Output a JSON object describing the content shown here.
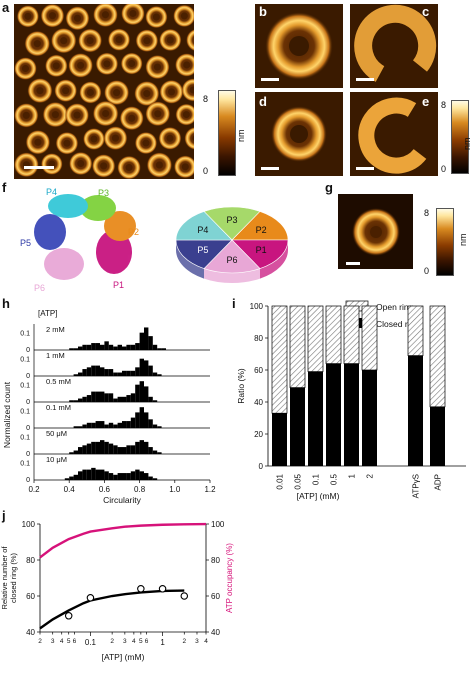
{
  "panels": {
    "a": "a",
    "b": "b",
    "c": "c",
    "d": "d",
    "e": "e",
    "f": "f",
    "g": "g",
    "h": "h",
    "i": "i",
    "j": "j"
  },
  "colorbar": {
    "max": "8",
    "min": "0",
    "unit": "nm"
  },
  "colors": {
    "afm_dark": "#3a1a00",
    "afm_bright": "#ffcc55",
    "magenta": "#d6127a",
    "black": "#000000"
  },
  "f": {
    "structure_labels": [
      "P1",
      "P2",
      "P3",
      "P4",
      "P5",
      "P6"
    ],
    "pie": [
      {
        "label": "P1",
        "color": "#c8157f",
        "value": 1
      },
      {
        "label": "P2",
        "color": "#e88a1b",
        "value": 1
      },
      {
        "label": "P3",
        "color": "#a6d96a",
        "value": 1
      },
      {
        "label": "P4",
        "color": "#7fd3d3",
        "value": 1
      },
      {
        "label": "P5",
        "color": "#3a3f8f",
        "value": 1
      },
      {
        "label": "P6",
        "color": "#e8a7d6",
        "value": 1
      }
    ]
  },
  "h": {
    "legend_title": "[ATP]",
    "rows": [
      "2 mM",
      "1 mM",
      "0.5 mM",
      "0.1 mM",
      "50 μM",
      "10 μM"
    ],
    "ytick_top": "0.1",
    "ytick_bottom": "0",
    "ylabel": "Normalized count",
    "xlabel": "Circularity",
    "xticks": [
      "0.2",
      "0.4",
      "0.6",
      "0.8",
      "1.0",
      "1.2"
    ]
  },
  "i": {
    "legend": [
      "Open ring",
      "Closed ring"
    ],
    "ylabel": "Ratio (%)",
    "xlabel": "[ATP] (mM)",
    "yticks": [
      "0",
      "20",
      "40",
      "60",
      "80",
      "100"
    ]
  },
  "j": {
    "ylabel_left": "Relative number of closed ring (%)",
    "ylabel_right": "ATP occupancy (%)",
    "xlabel": "[ATP] (mM)",
    "yticks": [
      "40",
      "60",
      "80",
      "100"
    ],
    "xtick_labels": [
      "2",
      "3",
      "4",
      "5",
      "6",
      "0.1",
      "2",
      "3",
      "4",
      "5",
      "6",
      "1",
      "2",
      "3",
      "4"
    ]
  },
  "chart_data": [
    {
      "type": "bar",
      "panel": "h",
      "x_range": [
        0.2,
        1.2
      ],
      "y_range": [
        0,
        0.15
      ],
      "bin_width": 0.025,
      "series": [
        {
          "name": "2 mM",
          "values": [
            0,
            0,
            0,
            0,
            0,
            0,
            0,
            0,
            0.01,
            0.01,
            0.02,
            0.03,
            0.03,
            0.04,
            0.04,
            0.03,
            0.05,
            0.03,
            0.02,
            0.03,
            0.02,
            0.03,
            0.03,
            0.04,
            0.1,
            0.13,
            0.08,
            0.03,
            0.01,
            0.01,
            0,
            0,
            0,
            0,
            0,
            0,
            0,
            0,
            0,
            0
          ]
        },
        {
          "name": "1 mM",
          "values": [
            0,
            0,
            0,
            0,
            0,
            0,
            0,
            0,
            0,
            0.01,
            0.02,
            0.04,
            0.05,
            0.06,
            0.06,
            0.05,
            0.04,
            0.04,
            0.02,
            0.02,
            0.03,
            0.03,
            0.03,
            0.05,
            0.1,
            0.09,
            0.06,
            0.02,
            0.01,
            0,
            0,
            0,
            0,
            0,
            0,
            0,
            0,
            0,
            0,
            0
          ]
        },
        {
          "name": "0.5 mM",
          "values": [
            0,
            0,
            0,
            0,
            0,
            0,
            0,
            0,
            0.01,
            0.01,
            0.02,
            0.03,
            0.04,
            0.06,
            0.06,
            0.06,
            0.05,
            0.05,
            0.02,
            0.03,
            0.03,
            0.04,
            0.05,
            0.1,
            0.12,
            0.09,
            0.03,
            0.01,
            0,
            0,
            0,
            0,
            0,
            0,
            0,
            0,
            0,
            0,
            0,
            0
          ]
        },
        {
          "name": "0.1 mM",
          "values": [
            0,
            0,
            0,
            0,
            0,
            0,
            0,
            0,
            0,
            0.01,
            0.01,
            0.02,
            0.03,
            0.03,
            0.04,
            0.04,
            0.02,
            0.03,
            0.02,
            0.03,
            0.04,
            0.04,
            0.06,
            0.09,
            0.12,
            0.09,
            0.05,
            0.02,
            0.01,
            0,
            0,
            0,
            0,
            0,
            0,
            0,
            0,
            0,
            0,
            0
          ]
        },
        {
          "name": "50 μM",
          "values": [
            0,
            0,
            0,
            0,
            0,
            0,
            0,
            0,
            0.01,
            0.02,
            0.04,
            0.05,
            0.06,
            0.07,
            0.07,
            0.08,
            0.07,
            0.06,
            0.05,
            0.04,
            0.04,
            0.05,
            0.05,
            0.07,
            0.08,
            0.07,
            0.04,
            0.02,
            0.01,
            0,
            0,
            0,
            0,
            0,
            0,
            0,
            0,
            0,
            0,
            0
          ]
        },
        {
          "name": "10 μM",
          "values": [
            0,
            0,
            0,
            0,
            0,
            0,
            0,
            0.01,
            0.02,
            0.03,
            0.05,
            0.06,
            0.06,
            0.07,
            0.06,
            0.06,
            0.05,
            0.04,
            0.03,
            0.04,
            0.04,
            0.04,
            0.05,
            0.06,
            0.05,
            0.04,
            0.02,
            0.01,
            0,
            0,
            0,
            0,
            0,
            0,
            0,
            0,
            0,
            0,
            0,
            0
          ]
        }
      ]
    },
    {
      "type": "bar",
      "panel": "i",
      "categories": [
        "0.01",
        "0.05",
        "0.1",
        "0.5",
        "1",
        "2",
        "",
        "ATPγS",
        "ADP"
      ],
      "ylim": [
        0,
        100
      ],
      "series": [
        {
          "name": "Closed ring",
          "values": [
            33,
            49,
            59,
            64,
            64,
            60,
            null,
            69,
            37
          ]
        },
        {
          "name": "Open ring",
          "values": [
            67,
            51,
            41,
            36,
            36,
            40,
            null,
            31,
            63
          ]
        }
      ]
    },
    {
      "type": "line",
      "panel": "j",
      "xscale": "log",
      "xlim": [
        0.02,
        4
      ],
      "ylim_left": [
        40,
        100
      ],
      "ylim_right": [
        0,
        100
      ],
      "points": {
        "x": [
          0.05,
          0.1,
          0.5,
          1,
          2
        ],
        "y": [
          49,
          59,
          64,
          64,
          60
        ]
      },
      "fit_closed": {
        "x": [
          0.02,
          0.03,
          0.05,
          0.08,
          0.1,
          0.2,
          0.3,
          0.5,
          1,
          2
        ],
        "y": [
          42,
          47,
          52,
          56,
          57.5,
          60,
          61,
          62,
          62.8,
          63
        ]
      },
      "fit_occupancy": {
        "x": [
          0.02,
          0.03,
          0.05,
          0.08,
          0.1,
          0.2,
          0.3,
          0.5,
          1,
          2,
          4
        ],
        "y": [
          69,
          78,
          86,
          91,
          93,
          96,
          97.5,
          98.5,
          99.3,
          99.7,
          99.9
        ]
      }
    }
  ]
}
